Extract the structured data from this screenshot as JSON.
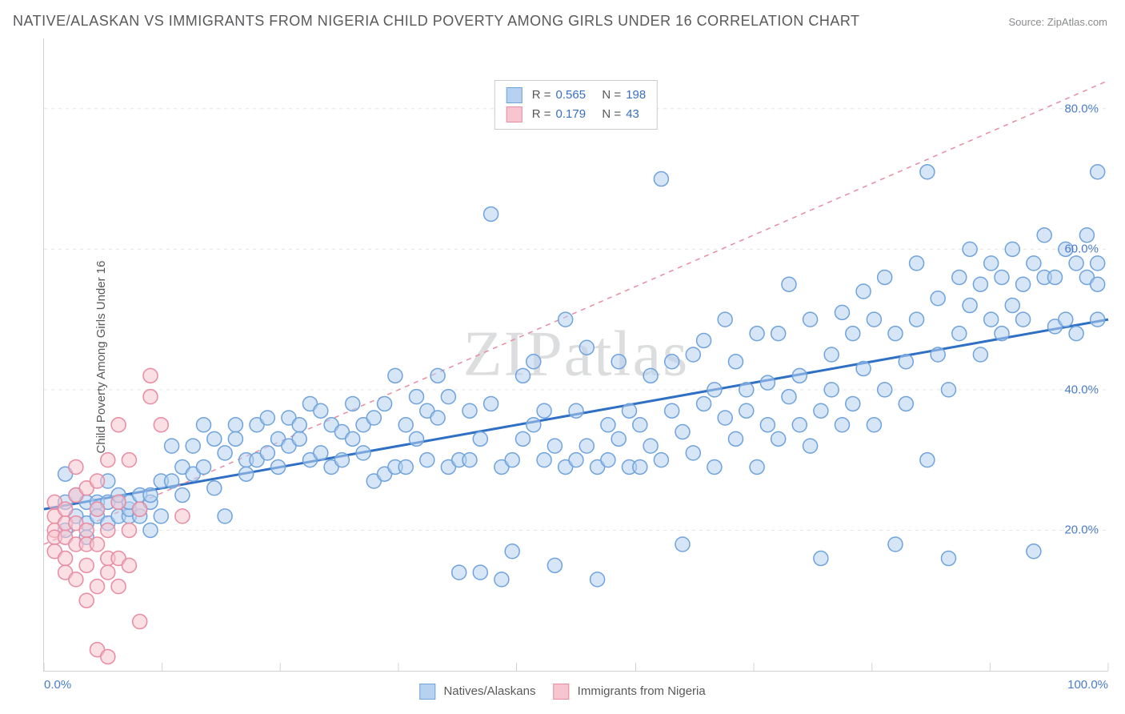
{
  "title": "NATIVE/ALASKAN VS IMMIGRANTS FROM NIGERIA CHILD POVERTY AMONG GIRLS UNDER 16 CORRELATION CHART",
  "source": "Source: ZipAtlas.com",
  "yaxis_label": "Child Poverty Among Girls Under 16",
  "watermark": "ZIPatlas",
  "chart": {
    "type": "scatter",
    "xlim": [
      0,
      100
    ],
    "ylim": [
      0,
      90
    ],
    "x_tick_labels": {
      "left": "0.0%",
      "right": "100.0%"
    },
    "y_ticks": [
      {
        "v": 20,
        "label": "20.0%"
      },
      {
        "v": 40,
        "label": "40.0%"
      },
      {
        "v": 60,
        "label": "60.0%"
      },
      {
        "v": 80,
        "label": "80.0%"
      }
    ],
    "x_tick_positions": [
      0,
      11.1,
      22.2,
      33.3,
      44.4,
      55.6,
      66.7,
      77.8,
      88.9,
      100
    ],
    "grid_color": "#e5e6e8",
    "axis_color": "#d0d2d4",
    "background_color": "#ffffff",
    "marker_radius": 9,
    "marker_stroke_width": 1.5,
    "series": [
      {
        "name": "Natives/Alaskans",
        "fill": "#b7d2f1",
        "stroke": "#6fa3dd",
        "fill_opacity": 0.55,
        "trend_color": "#2f6fc4",
        "trend_width": 3,
        "trend_dash": "none",
        "trend": {
          "x1": 0,
          "y1": 23,
          "x2": 100,
          "y2": 50
        },
        "R": "0.565",
        "N": "198",
        "points": [
          [
            2,
            28
          ],
          [
            2,
            24
          ],
          [
            2,
            20
          ],
          [
            3,
            25
          ],
          [
            3,
            22
          ],
          [
            4,
            24
          ],
          [
            4,
            21
          ],
          [
            4,
            19
          ],
          [
            5,
            24
          ],
          [
            5,
            23
          ],
          [
            5,
            22
          ],
          [
            6,
            21
          ],
          [
            6,
            24
          ],
          [
            6,
            27
          ],
          [
            7,
            24
          ],
          [
            7,
            22
          ],
          [
            7,
            25
          ],
          [
            8,
            22
          ],
          [
            8,
            23
          ],
          [
            8,
            24
          ],
          [
            9,
            22
          ],
          [
            9,
            23
          ],
          [
            9,
            25
          ],
          [
            10,
            20
          ],
          [
            10,
            24
          ],
          [
            10,
            25
          ],
          [
            11,
            22
          ],
          [
            11,
            27
          ],
          [
            12,
            27
          ],
          [
            12,
            32
          ],
          [
            13,
            25
          ],
          [
            13,
            29
          ],
          [
            14,
            28
          ],
          [
            14,
            32
          ],
          [
            15,
            29
          ],
          [
            15,
            35
          ],
          [
            16,
            26
          ],
          [
            16,
            33
          ],
          [
            17,
            22
          ],
          [
            17,
            31
          ],
          [
            18,
            35
          ],
          [
            18,
            33
          ],
          [
            19,
            30
          ],
          [
            19,
            28
          ],
          [
            20,
            30
          ],
          [
            20,
            35
          ],
          [
            21,
            36
          ],
          [
            21,
            31
          ],
          [
            22,
            33
          ],
          [
            22,
            29
          ],
          [
            23,
            32
          ],
          [
            23,
            36
          ],
          [
            24,
            35
          ],
          [
            24,
            33
          ],
          [
            25,
            30
          ],
          [
            25,
            38
          ],
          [
            26,
            31
          ],
          [
            26,
            37
          ],
          [
            27,
            29
          ],
          [
            27,
            35
          ],
          [
            28,
            34
          ],
          [
            28,
            30
          ],
          [
            29,
            38
          ],
          [
            29,
            33
          ],
          [
            30,
            35
          ],
          [
            30,
            31
          ],
          [
            31,
            27
          ],
          [
            31,
            36
          ],
          [
            32,
            28
          ],
          [
            32,
            38
          ],
          [
            33,
            29
          ],
          [
            33,
            42
          ],
          [
            34,
            35
          ],
          [
            34,
            29
          ],
          [
            35,
            39
          ],
          [
            35,
            33
          ],
          [
            36,
            30
          ],
          [
            36,
            37
          ],
          [
            37,
            36
          ],
          [
            37,
            42
          ],
          [
            38,
            39
          ],
          [
            38,
            29
          ],
          [
            39,
            14
          ],
          [
            39,
            30
          ],
          [
            40,
            30
          ],
          [
            40,
            37
          ],
          [
            41,
            14
          ],
          [
            41,
            33
          ],
          [
            42,
            65
          ],
          [
            42,
            38
          ],
          [
            43,
            13
          ],
          [
            43,
            29
          ],
          [
            44,
            30
          ],
          [
            44,
            17
          ],
          [
            45,
            33
          ],
          [
            45,
            42
          ],
          [
            46,
            35
          ],
          [
            46,
            44
          ],
          [
            47,
            30
          ],
          [
            47,
            37
          ],
          [
            48,
            32
          ],
          [
            48,
            15
          ],
          [
            49,
            50
          ],
          [
            49,
            29
          ],
          [
            50,
            37
          ],
          [
            50,
            30
          ],
          [
            51,
            32
          ],
          [
            51,
            46
          ],
          [
            52,
            29
          ],
          [
            52,
            13
          ],
          [
            53,
            35
          ],
          [
            53,
            30
          ],
          [
            54,
            33
          ],
          [
            54,
            44
          ],
          [
            55,
            37
          ],
          [
            55,
            29
          ],
          [
            56,
            29
          ],
          [
            56,
            35
          ],
          [
            57,
            32
          ],
          [
            57,
            42
          ],
          [
            58,
            30
          ],
          [
            58,
            70
          ],
          [
            59,
            44
          ],
          [
            59,
            37
          ],
          [
            60,
            34
          ],
          [
            60,
            18
          ],
          [
            61,
            45
          ],
          [
            61,
            31
          ],
          [
            62,
            38
          ],
          [
            62,
            47
          ],
          [
            63,
            40
          ],
          [
            63,
            29
          ],
          [
            64,
            50
          ],
          [
            64,
            36
          ],
          [
            65,
            33
          ],
          [
            65,
            44
          ],
          [
            66,
            40
          ],
          [
            66,
            37
          ],
          [
            67,
            29
          ],
          [
            67,
            48
          ],
          [
            68,
            41
          ],
          [
            68,
            35
          ],
          [
            69,
            33
          ],
          [
            69,
            48
          ],
          [
            70,
            55
          ],
          [
            70,
            39
          ],
          [
            71,
            42
          ],
          [
            71,
            35
          ],
          [
            72,
            50
          ],
          [
            72,
            32
          ],
          [
            73,
            37
          ],
          [
            73,
            16
          ],
          [
            74,
            45
          ],
          [
            74,
            40
          ],
          [
            75,
            35
          ],
          [
            75,
            51
          ],
          [
            76,
            48
          ],
          [
            76,
            38
          ],
          [
            77,
            43
          ],
          [
            77,
            54
          ],
          [
            78,
            50
          ],
          [
            78,
            35
          ],
          [
            79,
            40
          ],
          [
            79,
            56
          ],
          [
            80,
            48
          ],
          [
            80,
            18
          ],
          [
            81,
            44
          ],
          [
            81,
            38
          ],
          [
            82,
            50
          ],
          [
            82,
            58
          ],
          [
            83,
            30
          ],
          [
            83,
            71
          ],
          [
            84,
            45
          ],
          [
            84,
            53
          ],
          [
            85,
            40
          ],
          [
            85,
            16
          ],
          [
            86,
            48
          ],
          [
            86,
            56
          ],
          [
            87,
            52
          ],
          [
            87,
            60
          ],
          [
            88,
            55
          ],
          [
            88,
            45
          ],
          [
            89,
            58
          ],
          [
            89,
            50
          ],
          [
            90,
            56
          ],
          [
            90,
            48
          ],
          [
            91,
            52
          ],
          [
            91,
            60
          ],
          [
            92,
            55
          ],
          [
            92,
            50
          ],
          [
            93,
            58
          ],
          [
            93,
            17
          ],
          [
            94,
            56
          ],
          [
            94,
            62
          ],
          [
            95,
            49
          ],
          [
            95,
            56
          ],
          [
            96,
            60
          ],
          [
            96,
            50
          ],
          [
            97,
            48
          ],
          [
            97,
            58
          ],
          [
            98,
            56
          ],
          [
            98,
            62
          ],
          [
            99,
            58
          ],
          [
            99,
            71
          ],
          [
            99,
            55
          ],
          [
            99,
            50
          ]
        ]
      },
      {
        "name": "Immigrants from Nigeria",
        "fill": "#f6c5cf",
        "stroke": "#e98ba1",
        "fill_opacity": 0.55,
        "trend_color": "#e98ba1",
        "trend_width": 1.5,
        "trend_dash": "6,6",
        "trend": {
          "x1": 0,
          "y1": 18,
          "x2": 100,
          "y2": 84
        },
        "R": "0.179",
        "N": "43",
        "points": [
          [
            1,
            20
          ],
          [
            1,
            22
          ],
          [
            1,
            19
          ],
          [
            1,
            24
          ],
          [
            1,
            17
          ],
          [
            2,
            19
          ],
          [
            2,
            21
          ],
          [
            2,
            16
          ],
          [
            2,
            23
          ],
          [
            2,
            14
          ],
          [
            3,
            21
          ],
          [
            3,
            25
          ],
          [
            3,
            18
          ],
          [
            3,
            13
          ],
          [
            3,
            29
          ],
          [
            4,
            26
          ],
          [
            4,
            15
          ],
          [
            4,
            20
          ],
          [
            4,
            18
          ],
          [
            4,
            10
          ],
          [
            5,
            23
          ],
          [
            5,
            12
          ],
          [
            5,
            18
          ],
          [
            5,
            27
          ],
          [
            5,
            3
          ],
          [
            6,
            30
          ],
          [
            6,
            16
          ],
          [
            6,
            20
          ],
          [
            6,
            14
          ],
          [
            6,
            2
          ],
          [
            7,
            16
          ],
          [
            7,
            24
          ],
          [
            7,
            35
          ],
          [
            7,
            12
          ],
          [
            8,
            15
          ],
          [
            8,
            20
          ],
          [
            8,
            30
          ],
          [
            9,
            23
          ],
          [
            9,
            7
          ],
          [
            10,
            42
          ],
          [
            10,
            39
          ],
          [
            11,
            35
          ],
          [
            13,
            22
          ]
        ]
      }
    ]
  },
  "bottom_legend": [
    {
      "label": "Natives/Alaskans",
      "fill": "#b7d2f1",
      "stroke": "#6fa3dd"
    },
    {
      "label": "Immigrants from Nigeria",
      "fill": "#f6c5cf",
      "stroke": "#e98ba1"
    }
  ],
  "stats_legend": {
    "rows": [
      {
        "swatch_fill": "#b7d2f1",
        "swatch_stroke": "#6fa3dd",
        "r_label": "R =",
        "r_val": "0.565",
        "n_label": "N =",
        "n_val": "198"
      },
      {
        "swatch_fill": "#f6c5cf",
        "swatch_stroke": "#e98ba1",
        "r_label": "R =",
        "r_val": "0.179",
        "n_label": "N =",
        "n_val": "43"
      }
    ]
  },
  "colors": {
    "title": "#58595b",
    "source": "#8a8b8d",
    "tick_label": "#4a7cc9"
  }
}
